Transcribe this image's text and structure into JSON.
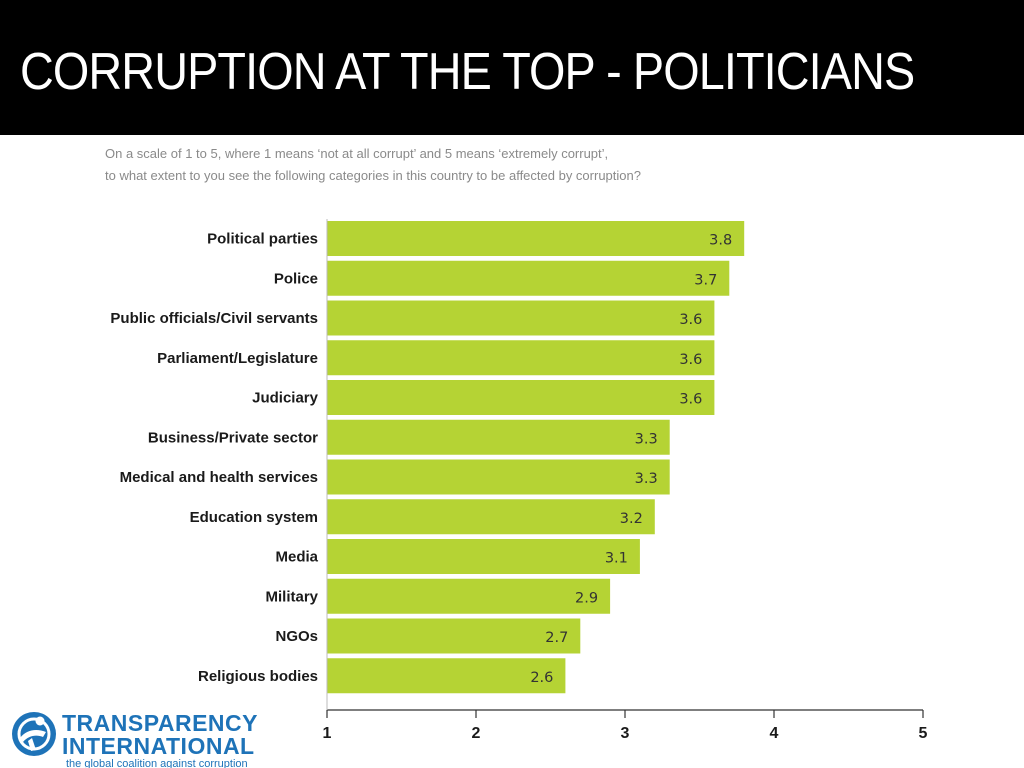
{
  "page": {
    "title": "CORRUPTION AT THE TOP - POLITICIANS",
    "subtitle_line1": "On a scale of 1 to 5, where 1 means ‘not at all corrupt’ and 5 means ‘extremely corrupt’,",
    "subtitle_line2": "to what extent to you see the following categories in this country to be affected by corruption?"
  },
  "logo": {
    "line1": "TRANSPARENCY",
    "line2": "INTERNATIONAL",
    "tagline": "the global coalition against corruption",
    "color": "#1e73b8"
  },
  "chart_data": {
    "type": "bar",
    "orientation": "horizontal",
    "title": "",
    "xlabel": "",
    "ylabel": "",
    "categories": [
      "Political parties",
      "Police",
      "Public officials/Civil servants",
      "Parliament/Legislature",
      "Judiciary",
      "Business/Private sector",
      "Medical and health services",
      "Education system",
      "Media",
      "Military",
      "NGOs",
      "Religious bodies"
    ],
    "values": [
      3.8,
      3.7,
      3.6,
      3.6,
      3.6,
      3.3,
      3.3,
      3.2,
      3.1,
      2.9,
      2.7,
      2.6
    ],
    "xlim": [
      1,
      5
    ],
    "xticks": [
      1,
      2,
      3,
      4,
      5
    ],
    "grid": false,
    "legend": "none",
    "bar_color": "#b5d334"
  }
}
